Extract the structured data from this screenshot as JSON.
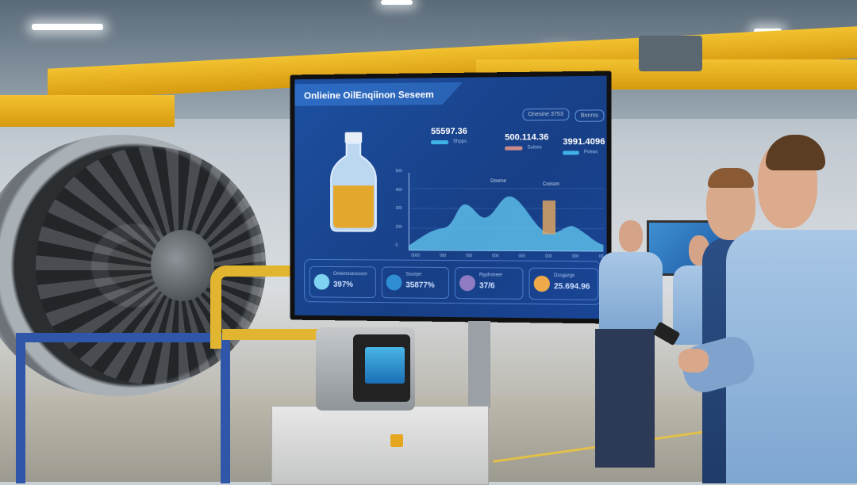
{
  "dashboard": {
    "title": "Onlieine OilEnqiinon Seseem",
    "header_pills": [
      "Onesine 3753",
      "Bnnms"
    ],
    "stats": [
      {
        "value": "55597.36",
        "caption": "Shpps",
        "bar_color": "#3fb3e8"
      },
      {
        "value": "500.114.36",
        "caption": "Sulses",
        "bar_color": "#c98a8a"
      },
      {
        "value": "3991.4096",
        "caption": "Poeas",
        "bar_color": "#3fb3e8"
      }
    ],
    "chart_data": {
      "type": "area",
      "y_tick_labels": [
        "500",
        "400",
        "300",
        "200",
        "0"
      ],
      "x_tick_labels": [
        "0000",
        "000",
        "000",
        "000",
        "000",
        "000",
        "000",
        "00"
      ],
      "annotations": [
        "Doorne",
        "Cooson"
      ],
      "series_color": "#5fc3ec",
      "highlight_bar_color": "#e7a85f"
    },
    "cards": [
      {
        "label": "Onlemoseosoon",
        "value": "397%",
        "icon_color": "#7fd3f2"
      },
      {
        "label": "Ssoepe",
        "value": "35877%",
        "icon_color": "#2f8ed3"
      },
      {
        "label": "Ryphsheer",
        "value": "37/6",
        "icon_color": "#8f7bc0"
      },
      {
        "label": "Dssgarge",
        "value": "25.694.96",
        "icon_color": "#f0a94a"
      }
    ]
  }
}
